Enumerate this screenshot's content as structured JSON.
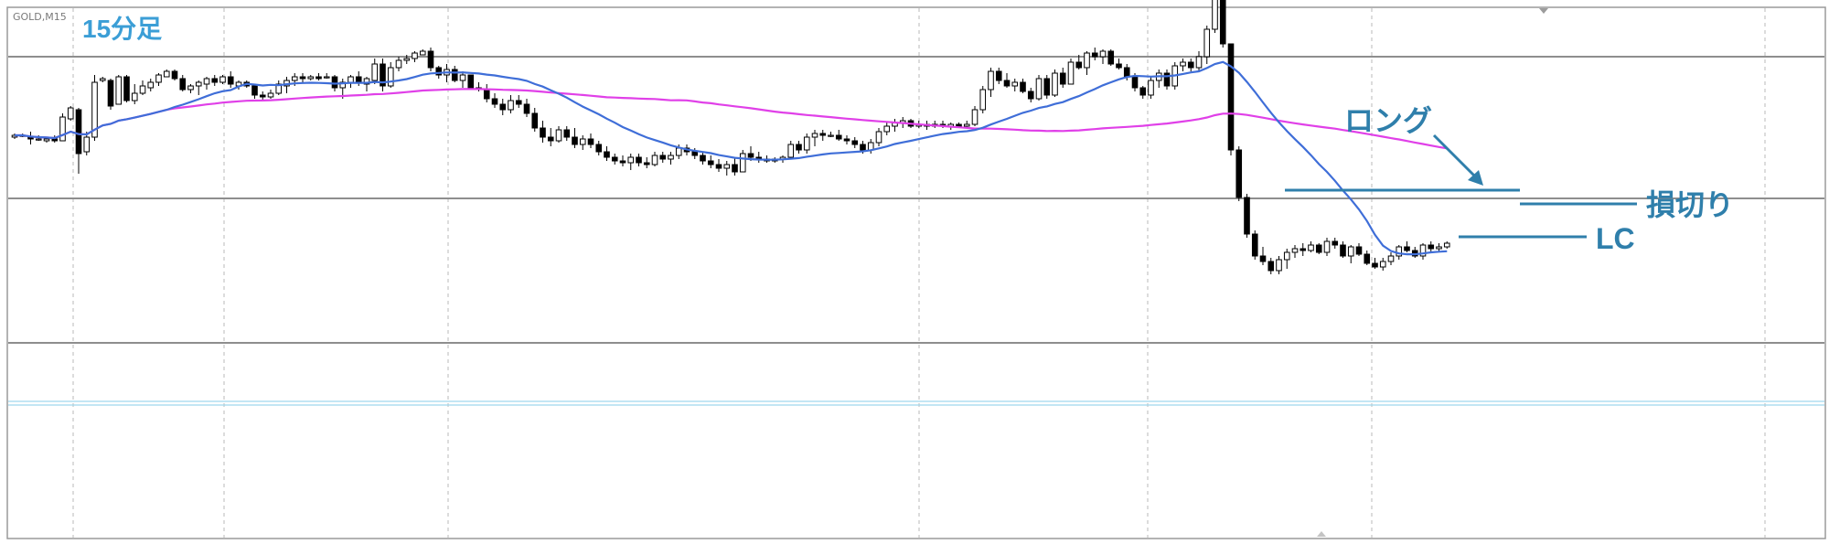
{
  "chart": {
    "symbol": "GOLD,M15",
    "timeframe_label": "15分足",
    "annotations": {
      "long": "ロング",
      "stop_loss": "損切り",
      "lc": "LC"
    }
  },
  "colors": {
    "background": "#ffffff",
    "frame": "#9a9a9a",
    "grid": "#b8b8b8",
    "level_line": "#8e8e8e",
    "candle_body_border": "#000000",
    "candle_up_fill": "#ffffff",
    "candle_down_fill": "#000000",
    "ma_fast": "#3f6ed8",
    "ma_slow": "#e040e8",
    "annotation": "#2f7fab",
    "bid_ask_line": "#9fd7ee"
  },
  "chart_data": {
    "type": "candlestick",
    "symbol": "GOLD,M15",
    "timeframe": "15分足",
    "candles_ohlc": [
      [
        215,
        214,
        217,
        216
      ],
      [
        216,
        215,
        217,
        216
      ],
      [
        215,
        211,
        218,
        214
      ],
      [
        214,
        213,
        216,
        214
      ],
      [
        213,
        212,
        215,
        214
      ],
      [
        214,
        212,
        216,
        213
      ],
      [
        213,
        213,
        228,
        226
      ],
      [
        225,
        224,
        232,
        231
      ],
      [
        230,
        195,
        231,
        206
      ],
      [
        207,
        205,
        218,
        215
      ],
      [
        215,
        213,
        249,
        245
      ],
      [
        246,
        245,
        248,
        247
      ],
      [
        246,
        230,
        247,
        232
      ],
      [
        233,
        233,
        249,
        248
      ],
      [
        248,
        234,
        249,
        235
      ],
      [
        235,
        233,
        244,
        239
      ],
      [
        239,
        238,
        246,
        243
      ],
      [
        242,
        240,
        247,
        245
      ],
      [
        245,
        243,
        250,
        249
      ],
      [
        248,
        248,
        252,
        251
      ],
      [
        251,
        246,
        252,
        247
      ],
      [
        247,
        240,
        249,
        241
      ],
      [
        241,
        239,
        244,
        243
      ],
      [
        243,
        238,
        246,
        245
      ],
      [
        244,
        241,
        248,
        247
      ],
      [
        247,
        243,
        249,
        245
      ],
      [
        245,
        244,
        249,
        248
      ],
      [
        248,
        242,
        251,
        244
      ],
      [
        243,
        241,
        246,
        245
      ],
      [
        245,
        242,
        246,
        243
      ],
      [
        243,
        236,
        244,
        238
      ],
      [
        238,
        235,
        240,
        237
      ],
      [
        237,
        236,
        241,
        239
      ],
      [
        239,
        238,
        246,
        244
      ],
      [
        243,
        239,
        248,
        246
      ],
      [
        246,
        243,
        250,
        248
      ],
      [
        248,
        245,
        250,
        247
      ],
      [
        247,
        246,
        249,
        248
      ],
      [
        248,
        246,
        250,
        247
      ],
      [
        248,
        247,
        250,
        248
      ],
      [
        248,
        240,
        249,
        242
      ],
      [
        242,
        236,
        247,
        245
      ],
      [
        245,
        242,
        249,
        248
      ],
      [
        248,
        243,
        251,
        245
      ],
      [
        244,
        240,
        248,
        247
      ],
      [
        246,
        244,
        258,
        255
      ],
      [
        255,
        240,
        258,
        243
      ],
      [
        243,
        242,
        256,
        253
      ],
      [
        253,
        251,
        259,
        257
      ],
      [
        257,
        255,
        260,
        258
      ],
      [
        258,
        256,
        262,
        261
      ],
      [
        260,
        260,
        263,
        262
      ],
      [
        262,
        251,
        264,
        253
      ],
      [
        253,
        247,
        254,
        249
      ],
      [
        249,
        245,
        255,
        252
      ],
      [
        252,
        245,
        254,
        246
      ],
      [
        246,
        242,
        251,
        249
      ],
      [
        249,
        241,
        249,
        242
      ],
      [
        242,
        240,
        245,
        241
      ],
      [
        241,
        234,
        244,
        236
      ],
      [
        236,
        231,
        239,
        233
      ],
      [
        233,
        227,
        236,
        230
      ],
      [
        230,
        228,
        238,
        235
      ],
      [
        235,
        231,
        238,
        233
      ],
      [
        233,
        226,
        236,
        228
      ],
      [
        228,
        218,
        231,
        220
      ],
      [
        220,
        212,
        224,
        215
      ],
      [
        215,
        210,
        220,
        213
      ],
      [
        213,
        212,
        221,
        219
      ],
      [
        219,
        213,
        221,
        215
      ],
      [
        215,
        209,
        220,
        211
      ],
      [
        211,
        208,
        216,
        214
      ],
      [
        214,
        209,
        217,
        211
      ],
      [
        211,
        205,
        213,
        207
      ],
      [
        207,
        202,
        210,
        204
      ],
      [
        204,
        200,
        206,
        202
      ],
      [
        202,
        199,
        205,
        201
      ],
      [
        201,
        197,
        206,
        204
      ],
      [
        204,
        199,
        206,
        201
      ],
      [
        201,
        198,
        204,
        200
      ],
      [
        200,
        199,
        207,
        205
      ],
      [
        205,
        201,
        207,
        203
      ],
      [
        203,
        200,
        207,
        205
      ],
      [
        205,
        203,
        211,
        209
      ],
      [
        209,
        205,
        211,
        207
      ],
      [
        207,
        203,
        209,
        205
      ],
      [
        205,
        200,
        207,
        202
      ],
      [
        202,
        198,
        205,
        200
      ],
      [
        200,
        196,
        203,
        198
      ],
      [
        198,
        194,
        202,
        200
      ],
      [
        200,
        194,
        204,
        196
      ],
      [
        196,
        196,
        208,
        206
      ],
      [
        206,
        202,
        210,
        204
      ],
      [
        204,
        201,
        207,
        203
      ],
      [
        203,
        201,
        205,
        202
      ],
      [
        202,
        201,
        204,
        203
      ],
      [
        203,
        201,
        205,
        204
      ],
      [
        204,
        203,
        213,
        211
      ],
      [
        211,
        206,
        213,
        208
      ],
      [
        208,
        206,
        217,
        215
      ],
      [
        215,
        210,
        219,
        217
      ],
      [
        217,
        213,
        219,
        216
      ],
      [
        216,
        215,
        218,
        216
      ],
      [
        216,
        213,
        219,
        214
      ],
      [
        214,
        211,
        216,
        213
      ],
      [
        213,
        209,
        215,
        211
      ],
      [
        211,
        206,
        213,
        208
      ],
      [
        208,
        206,
        214,
        212
      ],
      [
        212,
        210,
        220,
        218
      ],
      [
        218,
        216,
        223,
        221
      ],
      [
        221,
        218,
        225,
        223
      ],
      [
        223,
        220,
        226,
        224
      ],
      [
        224,
        220,
        225,
        221
      ],
      [
        221,
        220,
        224,
        222
      ],
      [
        222,
        219,
        224,
        221
      ],
      [
        221,
        220,
        224,
        222
      ],
      [
        222,
        220,
        224,
        221
      ],
      [
        221,
        219,
        223,
        222
      ],
      [
        222,
        220,
        223,
        221
      ],
      [
        221,
        220,
        224,
        222
      ],
      [
        222,
        221,
        232,
        230
      ],
      [
        230,
        228,
        243,
        241
      ],
      [
        241,
        237,
        253,
        251
      ],
      [
        251,
        244,
        253,
        246
      ],
      [
        246,
        242,
        250,
        243
      ],
      [
        243,
        240,
        247,
        245
      ],
      [
        245,
        239,
        247,
        240
      ],
      [
        240,
        234,
        242,
        236
      ],
      [
        236,
        235,
        249,
        247
      ],
      [
        247,
        236,
        249,
        238
      ],
      [
        238,
        237,
        252,
        250
      ],
      [
        250,
        242,
        253,
        244
      ],
      [
        244,
        244,
        258,
        256
      ],
      [
        256,
        252,
        260,
        253
      ],
      [
        253,
        249,
        262,
        261
      ],
      [
        261,
        257,
        264,
        259
      ],
      [
        259,
        255,
        263,
        262
      ],
      [
        262,
        254,
        263,
        255
      ],
      [
        255,
        252,
        258,
        253
      ],
      [
        253,
        246,
        255,
        248
      ],
      [
        248,
        240,
        250,
        242
      ],
      [
        242,
        236,
        243,
        238
      ],
      [
        238,
        236,
        248,
        246
      ],
      [
        246,
        242,
        252,
        250
      ],
      [
        250,
        241,
        252,
        243
      ],
      [
        243,
        241,
        256,
        254
      ],
      [
        254,
        251,
        258,
        256
      ],
      [
        256,
        251,
        258,
        253
      ],
      [
        253,
        251,
        262,
        259
      ],
      [
        259,
        255,
        276,
        274
      ],
      [
        274,
        272,
        296,
        294
      ],
      [
        294,
        264,
        296,
        266
      ],
      [
        266,
        205,
        266,
        208
      ],
      [
        208,
        180,
        210,
        182
      ],
      [
        182,
        160,
        184,
        162
      ],
      [
        162,
        148,
        164,
        150
      ],
      [
        150,
        145,
        155,
        147
      ],
      [
        147,
        140,
        149,
        142
      ],
      [
        142,
        140,
        150,
        148
      ],
      [
        148,
        143,
        154,
        152
      ],
      [
        152,
        149,
        156,
        154
      ],
      [
        154,
        150,
        157,
        153
      ],
      [
        153,
        152,
        158,
        156
      ],
      [
        156,
        151,
        157,
        152
      ],
      [
        152,
        150,
        160,
        158
      ],
      [
        158,
        154,
        160,
        156
      ],
      [
        156,
        149,
        158,
        150
      ],
      [
        150,
        146,
        156,
        155
      ],
      [
        155,
        150,
        157,
        151
      ],
      [
        151,
        145,
        153,
        146
      ],
      [
        146,
        143,
        149,
        144
      ],
      [
        144,
        142,
        149,
        147
      ],
      [
        147,
        145,
        152,
        150
      ],
      [
        150,
        148,
        156,
        155
      ],
      [
        155,
        152,
        158,
        153
      ],
      [
        153,
        149,
        155,
        150
      ],
      [
        150,
        148,
        157,
        156
      ],
      [
        156,
        152,
        158,
        154
      ],
      [
        154,
        152,
        157,
        155
      ],
      [
        155,
        154,
        158,
        157
      ]
    ],
    "ma_fast_color": "#3f6ed8",
    "ma_slow_color": "#e040e8",
    "annotations": [
      "ロング",
      "損切り",
      "LC"
    ],
    "grid": true
  }
}
